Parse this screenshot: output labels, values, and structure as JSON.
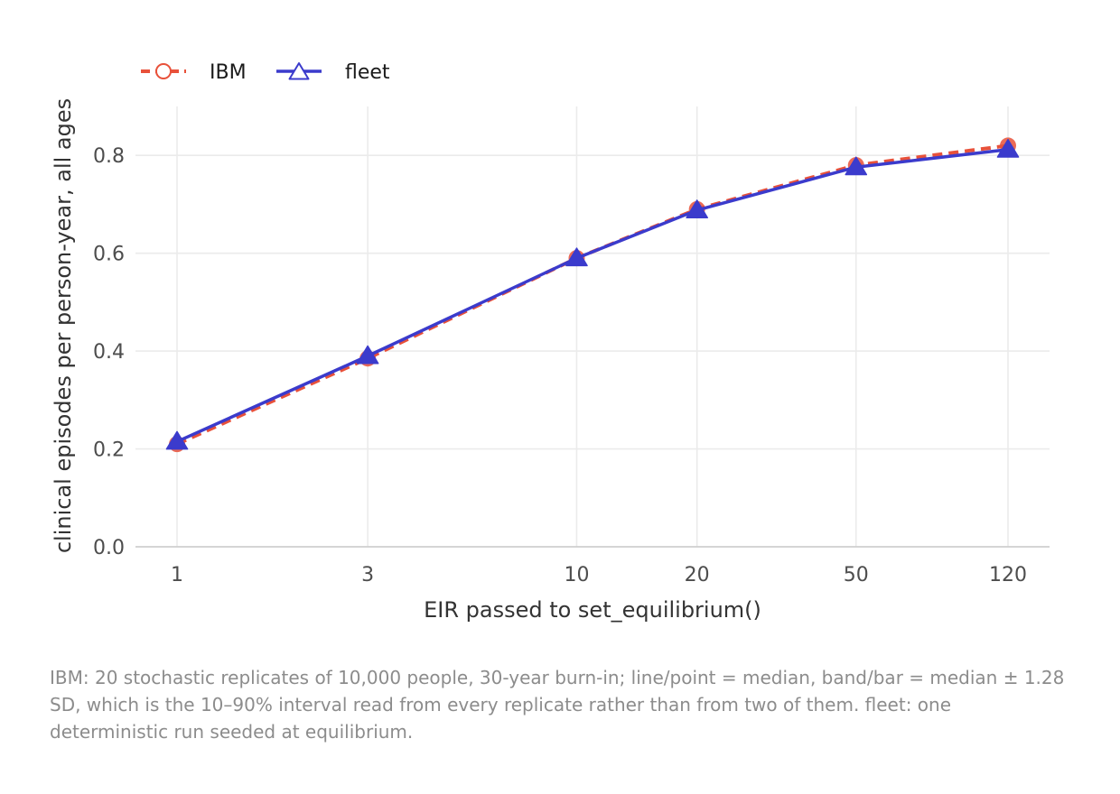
{
  "chart_data": {
    "type": "line",
    "x_scale": "log",
    "x": [
      1,
      3,
      10,
      20,
      50,
      120
    ],
    "x_tick_labels": [
      "1",
      "3",
      "10",
      "20",
      "50",
      "120"
    ],
    "xlabel": "EIR passed to set_equilibrium()",
    "ylabel": "clinical episodes per person-year, all ages",
    "ylim": [
      0,
      0.9
    ],
    "y_ticks": [
      0.0,
      0.2,
      0.4,
      0.6,
      0.8
    ],
    "y_tick_labels": [
      "0.0",
      "0.2",
      "0.4",
      "0.6",
      "0.8"
    ],
    "grid": true,
    "legend_position": "top-left",
    "series": [
      {
        "name": "IBM",
        "values": [
          0.21,
          0.385,
          0.59,
          0.69,
          0.78,
          0.82
        ],
        "color": "#e8513a",
        "line_style": "dashed",
        "marker": "circle"
      },
      {
        "name": "fleet",
        "values": [
          0.215,
          0.39,
          0.59,
          0.688,
          0.776,
          0.812
        ],
        "color": "#3b3bcc",
        "line_style": "solid",
        "marker": "triangle"
      }
    ]
  },
  "caption": "IBM: 20 stochastic replicates of 10,000 people, 30-year burn-in; line/point = median, band/bar = median ± 1.28 SD, which is the 10–90% interval read from every replicate rather than from two of them. fleet: one deterministic run seeded at equilibrium."
}
